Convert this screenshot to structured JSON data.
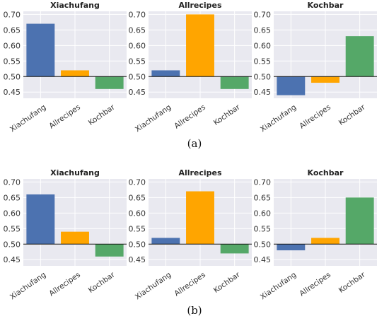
{
  "figure": {
    "captions": [
      "(a)",
      "(b)"
    ]
  },
  "chart_data": [
    {
      "type": "bar",
      "row": "a",
      "title": "Xiachufang",
      "categories": [
        "Xiachufang",
        "Allrecipes",
        "Kochbar"
      ],
      "values": [
        0.67,
        0.52,
        0.46
      ],
      "baseline": 0.5,
      "ylim": [
        0.43,
        0.71
      ],
      "yticks": [
        "0.45",
        "0.50",
        "0.55",
        "0.60",
        "0.65",
        "0.70"
      ],
      "colors": [
        "#4c72b0",
        "#ffa500",
        "#55a868"
      ],
      "grid": true
    },
    {
      "type": "bar",
      "row": "a",
      "title": "Allrecipes",
      "categories": [
        "Xiachufang",
        "Allrecipes",
        "Kochbar"
      ],
      "values": [
        0.52,
        0.7,
        0.46
      ],
      "baseline": 0.5,
      "ylim": [
        0.43,
        0.71
      ],
      "yticks": [
        "0.45",
        "0.50",
        "0.55",
        "0.60",
        "0.65",
        "0.70"
      ],
      "colors": [
        "#4c72b0",
        "#ffa500",
        "#55a868"
      ],
      "grid": true
    },
    {
      "type": "bar",
      "row": "a",
      "title": "Kochbar",
      "categories": [
        "Xiachufang",
        "Allrecipes",
        "Kochbar"
      ],
      "values": [
        0.44,
        0.48,
        0.63
      ],
      "baseline": 0.5,
      "ylim": [
        0.43,
        0.71
      ],
      "yticks": [
        "0.45",
        "0.50",
        "0.55",
        "0.60",
        "0.65",
        "0.70"
      ],
      "colors": [
        "#4c72b0",
        "#ffa500",
        "#55a868"
      ],
      "grid": true
    },
    {
      "type": "bar",
      "row": "b",
      "title": "Xiachufang",
      "categories": [
        "Xiachufang",
        "Allrecipes",
        "Kochbar"
      ],
      "values": [
        0.66,
        0.54,
        0.46
      ],
      "baseline": 0.5,
      "ylim": [
        0.43,
        0.71
      ],
      "yticks": [
        "0.45",
        "0.50",
        "0.55",
        "0.60",
        "0.65",
        "0.70"
      ],
      "colors": [
        "#4c72b0",
        "#ffa500",
        "#55a868"
      ],
      "grid": true
    },
    {
      "type": "bar",
      "row": "b",
      "title": "Allrecipes",
      "categories": [
        "Xiachufang",
        "Allrecipes",
        "Kochbar"
      ],
      "values": [
        0.52,
        0.67,
        0.47
      ],
      "baseline": 0.5,
      "ylim": [
        0.43,
        0.71
      ],
      "yticks": [
        "0.45",
        "0.50",
        "0.55",
        "0.60",
        "0.65",
        "0.70"
      ],
      "colors": [
        "#4c72b0",
        "#ffa500",
        "#55a868"
      ],
      "grid": true
    },
    {
      "type": "bar",
      "row": "b",
      "title": "Kochbar",
      "categories": [
        "Xiachufang",
        "Allrecipes",
        "Kochbar"
      ],
      "values": [
        0.48,
        0.52,
        0.65
      ],
      "baseline": 0.5,
      "ylim": [
        0.43,
        0.71
      ],
      "yticks": [
        "0.45",
        "0.50",
        "0.55",
        "0.60",
        "0.65",
        "0.70"
      ],
      "colors": [
        "#4c72b0",
        "#ffa500",
        "#55a868"
      ],
      "grid": true
    }
  ]
}
